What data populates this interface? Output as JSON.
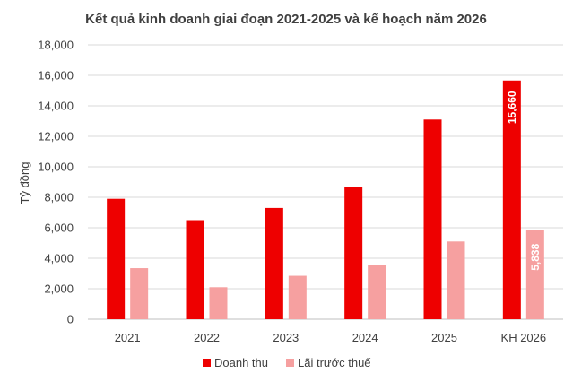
{
  "chart_data": {
    "type": "bar",
    "title": "Kết quả kinh doanh giai đoạn 2021-2025 và kế hoạch năm 2026",
    "xlabel": "",
    "ylabel": "Tỷ đồng",
    "ylim": [
      0,
      18000
    ],
    "yticks": [
      "0",
      "2,000",
      "4,000",
      "6,000",
      "8,000",
      "10,000",
      "12,000",
      "14,000",
      "16,000",
      "18,000"
    ],
    "categories": [
      "2021",
      "2022",
      "2023",
      "2024",
      "2025",
      "KH 2026"
    ],
    "series": [
      {
        "name": "Doanh thu",
        "color": "#ee0000",
        "values": [
          7900,
          6500,
          7300,
          8700,
          13100,
          15660
        ]
      },
      {
        "name": "Lãi trước thuế",
        "color": "#f6a0a0",
        "values": [
          3350,
          2100,
          2850,
          3550,
          5100,
          5838
        ]
      }
    ],
    "data_labels": [
      {
        "series": 0,
        "category": 5,
        "text": "15,660"
      },
      {
        "series": 1,
        "category": 5,
        "text": "5,838"
      }
    ],
    "grid": true,
    "legend_position": "bottom"
  }
}
